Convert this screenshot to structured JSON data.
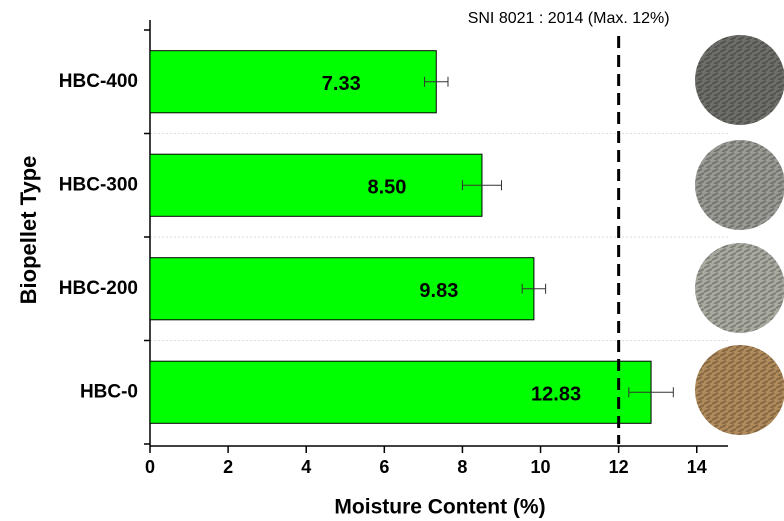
{
  "chart_data": {
    "type": "hbar",
    "x_label": "Moisture Content (%)",
    "y_label": "Biopellet Type",
    "categories": [
      "HBC-400",
      "HBC-300",
      "HBC-200",
      "HBC-0"
    ],
    "values": [
      7.33,
      8.5,
      9.83,
      12.83
    ],
    "value_labels": [
      "7.33",
      "8.50",
      "9.83",
      "12.83"
    ],
    "errors": [
      0.3,
      0.5,
      0.3,
      0.57
    ],
    "color": "#00ff00",
    "xlim": [
      0,
      14.8
    ],
    "xticks": [
      0,
      2,
      4,
      6,
      8,
      10,
      12,
      14
    ],
    "reference_line": {
      "value": 12,
      "label": "SNI 8021 : 2014 (Max. 12%)"
    }
  }
}
